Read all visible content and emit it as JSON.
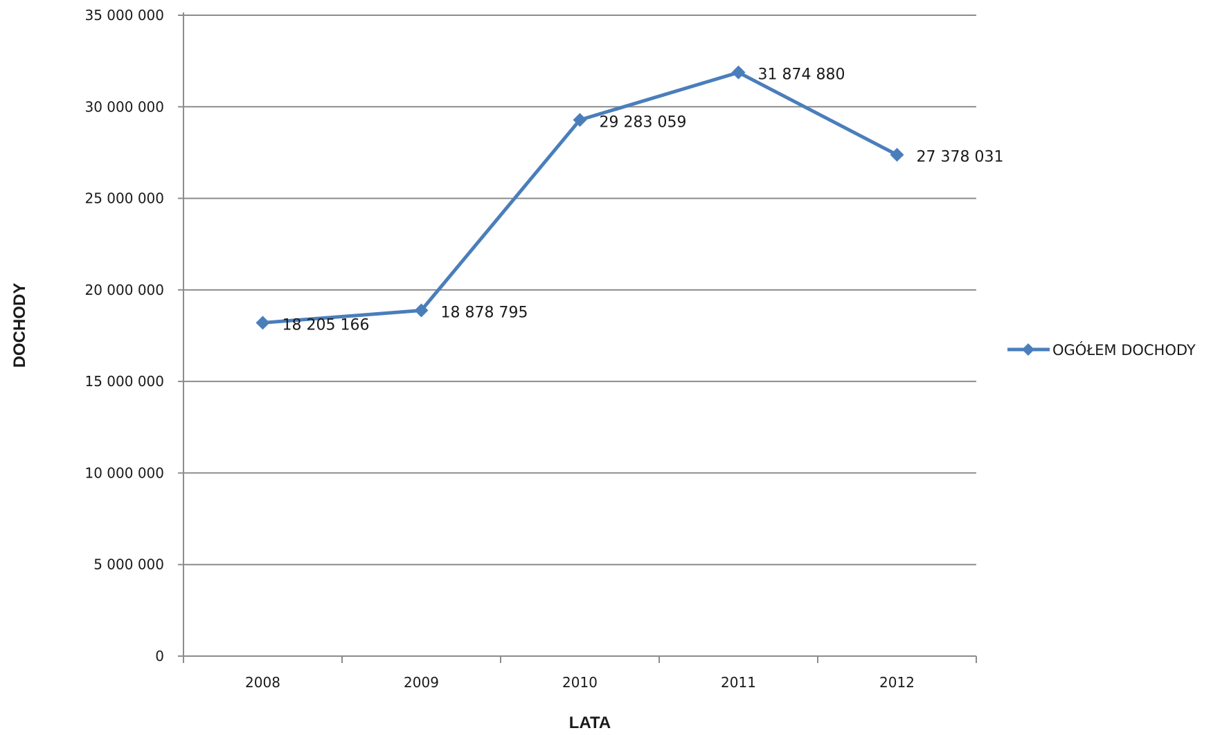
{
  "chart_data": {
    "type": "line",
    "categories": [
      "2008",
      "2009",
      "2010",
      "2011",
      "2012"
    ],
    "series": [
      {
        "name": "OGÓŁEM DOCHODY",
        "values": [
          18205166,
          18878795,
          29283059,
          31874880,
          27378031
        ],
        "labels": [
          "18 205 166",
          "18 878 795",
          "29 283 059",
          "31 874 880",
          "27 378 031"
        ],
        "color": "#4a7ebb"
      }
    ],
    "xlabel": "LATA",
    "ylabel": "DOCHODY",
    "ylim": [
      0,
      35000000
    ],
    "yticks": [
      "0",
      "5 000 000",
      "10 000 000",
      "15 000 000",
      "20 000 000",
      "25 000 000",
      "30 000 000",
      "35 000 000"
    ],
    "grid": true,
    "legend_position": "right"
  }
}
